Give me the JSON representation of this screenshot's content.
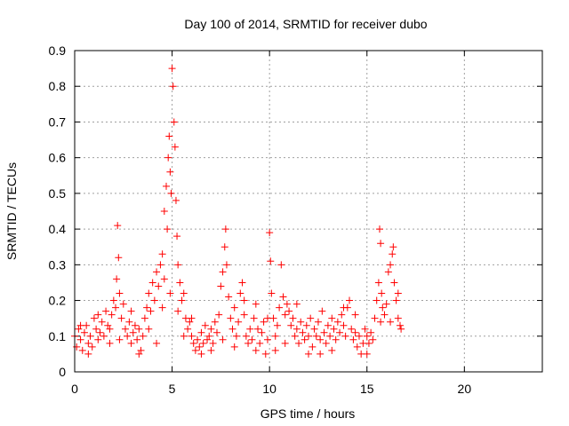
{
  "chart_data": {
    "type": "scatter",
    "title": "Day 100 of 2014, SRMTID for receiver dubo",
    "xlabel": "GPS time / hours",
    "ylabel": "SRMTID / TECUs",
    "xlim": [
      0,
      24
    ],
    "ylim": [
      0,
      0.9
    ],
    "xticks": [
      0,
      5,
      10,
      15,
      20
    ],
    "yticks": [
      0,
      0.1,
      0.2,
      0.3,
      0.4,
      0.5,
      0.6,
      0.7,
      0.8,
      0.9
    ],
    "xtick_labels": [
      "0",
      "5",
      "10",
      "15",
      "20"
    ],
    "ytick_labels": [
      "0",
      "0.1",
      "0.2",
      "0.3",
      "0.4",
      "0.5",
      "0.6",
      "0.7",
      "0.8",
      "0.9"
    ],
    "grid": true,
    "marker": "+",
    "color": "#ff0000",
    "series": [
      {
        "name": "SRMTID",
        "points": [
          [
            0.0,
            0.1
          ],
          [
            0.1,
            0.07
          ],
          [
            0.2,
            0.12
          ],
          [
            0.3,
            0.09
          ],
          [
            0.4,
            0.06
          ],
          [
            0.5,
            0.11
          ],
          [
            0.6,
            0.13
          ],
          [
            0.7,
            0.08
          ],
          [
            0.8,
            0.1
          ],
          [
            0.9,
            0.07
          ],
          [
            1.0,
            0.15
          ],
          [
            1.1,
            0.12
          ],
          [
            1.2,
            0.09
          ],
          [
            1.3,
            0.11
          ],
          [
            1.4,
            0.14
          ],
          [
            1.5,
            0.1
          ],
          [
            1.6,
            0.17
          ],
          [
            1.7,
            0.13
          ],
          [
            1.8,
            0.12
          ],
          [
            1.9,
            0.16
          ],
          [
            2.0,
            0.2
          ],
          [
            2.1,
            0.18
          ],
          [
            2.15,
            0.26
          ],
          [
            2.2,
            0.41
          ],
          [
            2.25,
            0.32
          ],
          [
            2.3,
            0.22
          ],
          [
            2.4,
            0.15
          ],
          [
            2.5,
            0.19
          ],
          [
            2.6,
            0.12
          ],
          [
            2.7,
            0.1
          ],
          [
            2.8,
            0.14
          ],
          [
            2.9,
            0.08
          ],
          [
            3.0,
            0.11
          ],
          [
            3.1,
            0.13
          ],
          [
            3.2,
            0.09
          ],
          [
            3.3,
            0.12
          ],
          [
            3.4,
            0.06
          ],
          [
            3.5,
            0.1
          ],
          [
            3.6,
            0.15
          ],
          [
            3.7,
            0.18
          ],
          [
            3.8,
            0.22
          ],
          [
            3.9,
            0.17
          ],
          [
            4.0,
            0.25
          ],
          [
            4.1,
            0.2
          ],
          [
            4.2,
            0.28
          ],
          [
            4.3,
            0.24
          ],
          [
            4.4,
            0.3
          ],
          [
            4.5,
            0.33
          ],
          [
            4.6,
            0.45
          ],
          [
            4.7,
            0.52
          ],
          [
            4.75,
            0.4
          ],
          [
            4.8,
            0.6
          ],
          [
            4.85,
            0.66
          ],
          [
            4.9,
            0.56
          ],
          [
            4.95,
            0.5
          ],
          [
            5.0,
            0.85
          ],
          [
            5.05,
            0.8
          ],
          [
            5.1,
            0.7
          ],
          [
            5.15,
            0.63
          ],
          [
            5.2,
            0.48
          ],
          [
            5.25,
            0.38
          ],
          [
            5.3,
            0.3
          ],
          [
            5.4,
            0.25
          ],
          [
            5.5,
            0.2
          ],
          [
            5.6,
            0.22
          ],
          [
            5.7,
            0.15
          ],
          [
            5.8,
            0.12
          ],
          [
            5.9,
            0.14
          ],
          [
            6.0,
            0.1
          ],
          [
            6.1,
            0.08
          ],
          [
            6.2,
            0.06
          ],
          [
            6.3,
            0.09
          ],
          [
            6.4,
            0.07
          ],
          [
            6.5,
            0.11
          ],
          [
            6.6,
            0.08
          ],
          [
            6.7,
            0.13
          ],
          [
            6.8,
            0.09
          ],
          [
            6.9,
            0.1
          ],
          [
            7.0,
            0.12
          ],
          [
            7.1,
            0.08
          ],
          [
            7.2,
            0.14
          ],
          [
            7.3,
            0.11
          ],
          [
            7.4,
            0.16
          ],
          [
            7.5,
            0.24
          ],
          [
            7.6,
            0.28
          ],
          [
            7.7,
            0.35
          ],
          [
            7.75,
            0.4
          ],
          [
            7.8,
            0.3
          ],
          [
            7.9,
            0.21
          ],
          [
            8.0,
            0.15
          ],
          [
            8.1,
            0.12
          ],
          [
            8.2,
            0.18
          ],
          [
            8.3,
            0.1
          ],
          [
            8.4,
            0.14
          ],
          [
            8.5,
            0.22
          ],
          [
            8.6,
            0.25
          ],
          [
            8.7,
            0.16
          ],
          [
            8.8,
            0.1
          ],
          [
            8.9,
            0.08
          ],
          [
            9.0,
            0.12
          ],
          [
            9.1,
            0.09
          ],
          [
            9.2,
            0.15
          ],
          [
            9.3,
            0.19
          ],
          [
            9.4,
            0.12
          ],
          [
            9.5,
            0.08
          ],
          [
            9.6,
            0.11
          ],
          [
            9.7,
            0.14
          ],
          [
            9.8,
            0.05
          ],
          [
            9.9,
            0.09
          ],
          [
            10.0,
            0.39
          ],
          [
            10.05,
            0.31
          ],
          [
            10.1,
            0.22
          ],
          [
            10.2,
            0.15
          ],
          [
            10.3,
            0.1
          ],
          [
            10.4,
            0.13
          ],
          [
            10.5,
            0.18
          ],
          [
            10.6,
            0.3
          ],
          [
            10.7,
            0.21
          ],
          [
            10.8,
            0.16
          ],
          [
            10.9,
            0.19
          ],
          [
            11.0,
            0.17
          ],
          [
            11.1,
            0.13
          ],
          [
            11.2,
            0.15
          ],
          [
            11.3,
            0.1
          ],
          [
            11.4,
            0.12
          ],
          [
            11.5,
            0.08
          ],
          [
            11.6,
            0.14
          ],
          [
            11.7,
            0.11
          ],
          [
            11.8,
            0.09
          ],
          [
            11.9,
            0.13
          ],
          [
            12.0,
            0.1
          ],
          [
            12.1,
            0.15
          ],
          [
            12.2,
            0.07
          ],
          [
            12.3,
            0.12
          ],
          [
            12.4,
            0.1
          ],
          [
            12.5,
            0.14
          ],
          [
            12.6,
            0.09
          ],
          [
            12.7,
            0.17
          ],
          [
            12.8,
            0.11
          ],
          [
            12.9,
            0.08
          ],
          [
            13.0,
            0.13
          ],
          [
            13.1,
            0.1
          ],
          [
            13.2,
            0.15
          ],
          [
            13.3,
            0.12
          ],
          [
            13.4,
            0.09
          ],
          [
            13.5,
            0.14
          ],
          [
            13.6,
            0.11
          ],
          [
            13.7,
            0.16
          ],
          [
            13.8,
            0.13
          ],
          [
            13.9,
            0.1
          ],
          [
            14.0,
            0.18
          ],
          [
            14.1,
            0.2
          ],
          [
            14.2,
            0.12
          ],
          [
            14.3,
            0.09
          ],
          [
            14.4,
            0.11
          ],
          [
            14.5,
            0.07
          ],
          [
            14.6,
            0.1
          ],
          [
            14.7,
            0.05
          ],
          [
            14.8,
            0.08
          ],
          [
            14.9,
            0.12
          ],
          [
            15.0,
            0.1
          ],
          [
            15.1,
            0.08
          ],
          [
            15.2,
            0.11
          ],
          [
            15.3,
            0.09
          ],
          [
            15.4,
            0.15
          ],
          [
            15.5,
            0.2
          ],
          [
            15.6,
            0.25
          ],
          [
            15.65,
            0.4
          ],
          [
            15.7,
            0.36
          ],
          [
            15.75,
            0.22
          ],
          [
            15.8,
            0.18
          ],
          [
            15.9,
            0.16
          ],
          [
            16.0,
            0.19
          ],
          [
            16.1,
            0.28
          ],
          [
            16.2,
            0.3
          ],
          [
            16.3,
            0.33
          ],
          [
            16.35,
            0.35
          ],
          [
            16.4,
            0.25
          ],
          [
            16.5,
            0.2
          ],
          [
            16.6,
            0.15
          ],
          [
            16.7,
            0.13
          ],
          [
            16.75,
            0.12
          ],
          [
            0.3,
            0.13
          ],
          [
            0.7,
            0.05
          ],
          [
            1.2,
            0.16
          ],
          [
            1.8,
            0.08
          ],
          [
            2.3,
            0.09
          ],
          [
            2.9,
            0.17
          ],
          [
            3.3,
            0.05
          ],
          [
            3.8,
            0.12
          ],
          [
            4.2,
            0.08
          ],
          [
            4.5,
            0.18
          ],
          [
            4.6,
            0.26
          ],
          [
            4.9,
            0.22
          ],
          [
            5.3,
            0.17
          ],
          [
            5.6,
            0.1
          ],
          [
            6.0,
            0.15
          ],
          [
            6.5,
            0.05
          ],
          [
            7.0,
            0.06
          ],
          [
            7.6,
            0.09
          ],
          [
            8.2,
            0.07
          ],
          [
            8.7,
            0.2
          ],
          [
            9.3,
            0.06
          ],
          [
            9.9,
            0.15
          ],
          [
            10.3,
            0.06
          ],
          [
            10.8,
            0.08
          ],
          [
            11.4,
            0.19
          ],
          [
            12.0,
            0.05
          ],
          [
            12.6,
            0.05
          ],
          [
            13.2,
            0.06
          ],
          [
            13.8,
            0.18
          ],
          [
            14.4,
            0.16
          ],
          [
            15.0,
            0.05
          ],
          [
            15.7,
            0.14
          ],
          [
            16.2,
            0.14
          ],
          [
            16.6,
            0.22
          ]
        ]
      }
    ]
  }
}
